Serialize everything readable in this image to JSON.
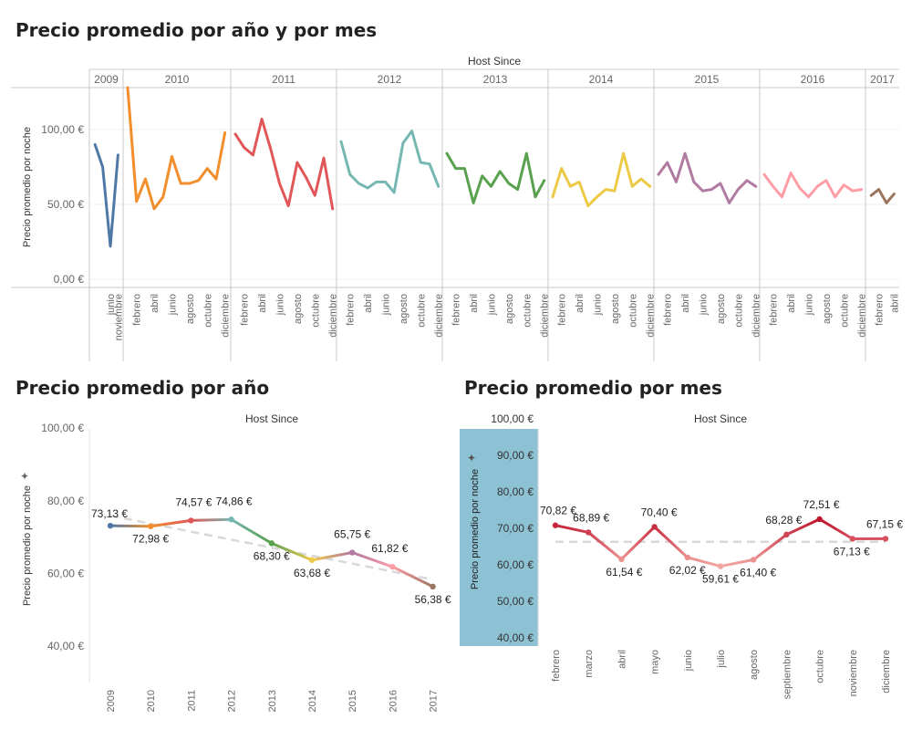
{
  "titles": {
    "top": "Precio promedio por año y por mes",
    "year": "Precio promedio por año",
    "month": "Precio promedio por mes"
  },
  "chart_data": [
    {
      "type": "line",
      "title": "Precio promedio por año y por mes",
      "header": "Host Since",
      "ylabel": "Precio promedio por noche",
      "ylim": [
        0,
        130
      ],
      "yticks": [
        "0,00 €",
        "50,00 €",
        "100,00 €"
      ],
      "colors": {
        "2009": "#4e79a7",
        "2010": "#f28e2b",
        "2011": "#e15759",
        "2012": "#76b7b2",
        "2013": "#59a14f",
        "2014": "#edc948",
        "2015": "#b07aa1",
        "2016": "#ff9da7",
        "2017": "#9c755f"
      },
      "years": [
        {
          "year": "2009",
          "months": [
            "junio",
            "noviembre"
          ],
          "values": [
            90,
            75,
            22,
            83
          ]
        },
        {
          "year": "2010",
          "months": [
            "febrero",
            "abril",
            "junio",
            "agosto",
            "octubre",
            "diciembre"
          ],
          "values": [
            128,
            52,
            67,
            47,
            55,
            82,
            64,
            64,
            66,
            74,
            67,
            98
          ]
        },
        {
          "year": "2011",
          "months": [
            "febrero",
            "abril",
            "junio",
            "agosto",
            "octubre",
            "diciembre"
          ],
          "values": [
            97,
            88,
            83,
            107,
            87,
            64,
            49,
            78,
            68,
            56,
            81,
            47
          ]
        },
        {
          "year": "2012",
          "months": [
            "febrero",
            "abril",
            "junio",
            "agosto",
            "octubre",
            "diciembre"
          ],
          "values": [
            92,
            70,
            64,
            61,
            65,
            65,
            58,
            91,
            99,
            78,
            77,
            62
          ]
        },
        {
          "year": "2013",
          "months": [
            "febrero",
            "abril",
            "junio",
            "agosto",
            "octubre",
            "diciembre"
          ],
          "values": [
            84,
            74,
            74,
            51,
            69,
            62,
            72,
            64,
            60,
            84,
            55,
            66
          ]
        },
        {
          "year": "2014",
          "months": [
            "febrero",
            "abril",
            "junio",
            "agosto",
            "octubre",
            "diciembre"
          ],
          "values": [
            55,
            74,
            62,
            65,
            49,
            55,
            60,
            59,
            84,
            62,
            67,
            62
          ]
        },
        {
          "year": "2015",
          "months": [
            "febrero",
            "abril",
            "junio",
            "agosto",
            "octubre",
            "diciembre"
          ],
          "values": [
            70,
            78,
            65,
            84,
            65,
            59,
            60,
            64,
            51,
            60,
            66,
            62
          ]
        },
        {
          "year": "2016",
          "months": [
            "febrero",
            "abril",
            "junio",
            "agosto",
            "octubre",
            "diciembre"
          ],
          "values": [
            70,
            62,
            55,
            71,
            61,
            55,
            62,
            66,
            55,
            63,
            59,
            60
          ]
        },
        {
          "year": "2017",
          "months": [
            "febrero",
            "abril"
          ],
          "values": [
            56,
            60,
            51,
            57
          ]
        }
      ]
    },
    {
      "type": "line",
      "title": "Precio promedio por año",
      "header": "Host Since",
      "ylabel": "Precio promedio por noche",
      "ylim": [
        35,
        102
      ],
      "yticks": [
        "40,00 €",
        "60,00 €",
        "80,00 €",
        "100,00 €"
      ],
      "categories": [
        "2009",
        "2010",
        "2011",
        "2012",
        "2013",
        "2014",
        "2015",
        "2016",
        "2017"
      ],
      "values": [
        73.13,
        72.98,
        74.57,
        74.86,
        68.3,
        63.68,
        65.75,
        61.82,
        56.38
      ],
      "labels": [
        "73,13 €",
        "72,98 €",
        "74,57 €",
        "74,86 €",
        "68,30 €",
        "63,68 €",
        "65,75 €",
        "61,82 €",
        "56,38 €"
      ],
      "colors": [
        "#4e79a7",
        "#f28e2b",
        "#e15759",
        "#76b7b2",
        "#59a14f",
        "#edc948",
        "#b07aa1",
        "#ff9da7",
        "#9c755f"
      ],
      "trendline": [
        75.9,
        58.3
      ]
    },
    {
      "type": "line",
      "title": "Precio promedio por mes",
      "header": "Host Since",
      "ylabel": "Precio promedio por noche",
      "ylim": [
        38,
        102
      ],
      "yticks": [
        "40,00 €",
        "50,00 €",
        "60,00 €",
        "70,00 €",
        "80,00 €",
        "90,00 €",
        "100,00 €"
      ],
      "categories": [
        "febrero",
        "marzo",
        "abril",
        "mayo",
        "junio",
        "julio",
        "agosto",
        "septiembre",
        "octubre",
        "noviembre",
        "diciembre"
      ],
      "values": [
        70.82,
        68.89,
        61.54,
        70.4,
        62.02,
        59.61,
        61.4,
        68.28,
        72.51,
        67.13,
        67.15
      ],
      "labels": [
        "70,82 €",
        "68,89 €",
        "61,54 €",
        "70,40 €",
        "62,02 €",
        "59,61 €",
        "61,40 €",
        "68,28 €",
        "72,51 €",
        "67,13 €",
        "67,15 €"
      ],
      "trendline": [
        66.3,
        66.3
      ],
      "panel_color": "#8cc2d4"
    }
  ]
}
